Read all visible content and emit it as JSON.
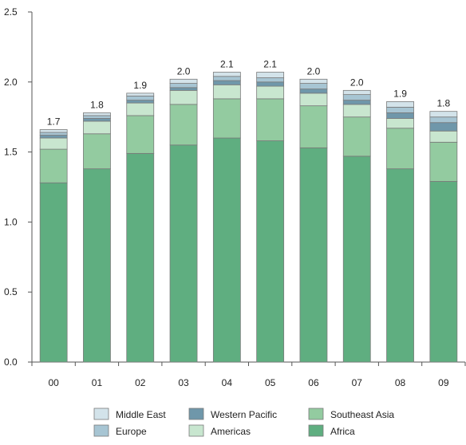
{
  "chart_data": {
    "type": "bar",
    "stacked": true,
    "title": "",
    "xlabel": "",
    "ylabel": "",
    "ylim": [
      0,
      2.5
    ],
    "yticks": [
      "0.0",
      "0.5",
      "1.0",
      "1.5",
      "2.0",
      "2.5"
    ],
    "yticks_values": [
      0,
      0.5,
      1.0,
      1.5,
      2.0,
      2.5
    ],
    "grid": false,
    "legend_position": "bottom",
    "categories": [
      "00",
      "01",
      "02",
      "03",
      "04",
      "05",
      "06",
      "07",
      "08",
      "09"
    ],
    "totals_labels": [
      "1.7",
      "1.8",
      "1.9",
      "2.0",
      "2.1",
      "2.1",
      "2.0",
      "2.0",
      "1.9",
      "1.8"
    ],
    "series": [
      {
        "name": "Africa",
        "color": "#5fae80",
        "values": [
          1.28,
          1.38,
          1.49,
          1.55,
          1.6,
          1.58,
          1.53,
          1.47,
          1.38,
          1.29
        ]
      },
      {
        "name": "Southeast Asia",
        "color": "#93cba0",
        "values": [
          0.24,
          0.25,
          0.27,
          0.29,
          0.28,
          0.3,
          0.3,
          0.28,
          0.29,
          0.28
        ]
      },
      {
        "name": "Americas",
        "color": "#c8e6cf",
        "values": [
          0.08,
          0.09,
          0.09,
          0.1,
          0.1,
          0.09,
          0.09,
          0.09,
          0.07,
          0.08
        ]
      },
      {
        "name": "Western Pacific",
        "color": "#6f97aa",
        "values": [
          0.02,
          0.02,
          0.02,
          0.02,
          0.03,
          0.03,
          0.03,
          0.03,
          0.04,
          0.06
        ]
      },
      {
        "name": "Europe",
        "color": "#a7c5d3",
        "values": [
          0.02,
          0.02,
          0.03,
          0.03,
          0.03,
          0.03,
          0.04,
          0.04,
          0.04,
          0.04
        ]
      },
      {
        "name": "Middle East",
        "color": "#d3e3ea",
        "values": [
          0.02,
          0.02,
          0.02,
          0.03,
          0.03,
          0.04,
          0.03,
          0.03,
          0.04,
          0.04
        ]
      }
    ],
    "legend": [
      {
        "name": "Middle East",
        "color": "#d3e3ea"
      },
      {
        "name": "Western Pacific",
        "color": "#6f97aa"
      },
      {
        "name": "Southeast Asia",
        "color": "#93cba0"
      },
      {
        "name": "Europe",
        "color": "#a7c5d3"
      },
      {
        "name": "Americas",
        "color": "#c8e6cf"
      },
      {
        "name": "Africa",
        "color": "#5fae80"
      }
    ]
  }
}
